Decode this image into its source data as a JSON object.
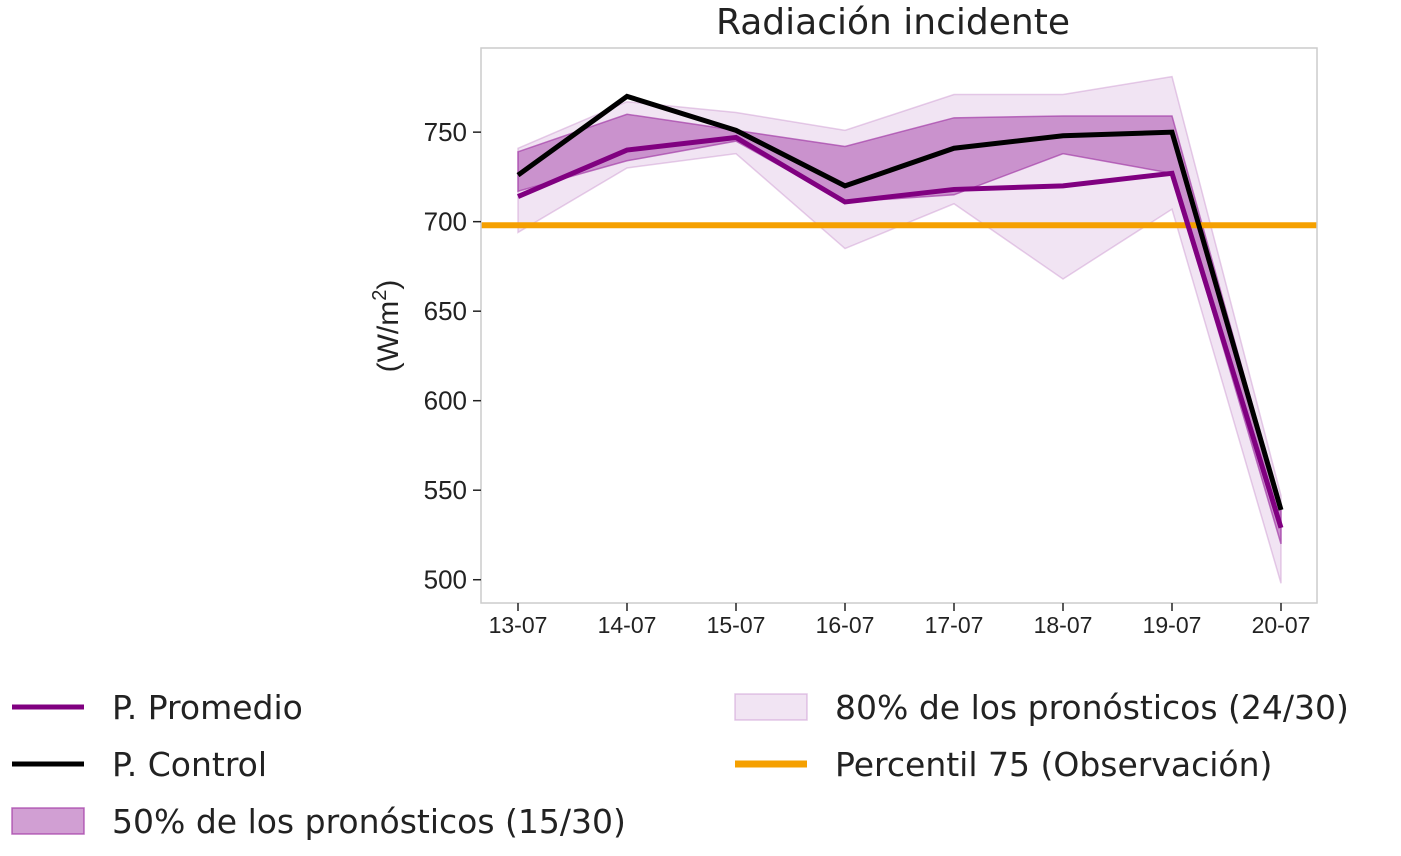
{
  "chart_data": {
    "type": "line",
    "title": "Radiación incidente",
    "xlabel": "",
    "ylabel": "(W/m",
    "ylabel_sup": "2",
    "ylabel_close": ")",
    "categories": [
      "13-07",
      "14-07",
      "15-07",
      "16-07",
      "17-07",
      "18-07",
      "19-07",
      "20-07"
    ],
    "ylim": [
      487,
      797
    ],
    "yticks": [
      500,
      550,
      600,
      650,
      700,
      750
    ],
    "grid": false,
    "series": [
      {
        "name": "P. Promedio",
        "kind": "line",
        "color": "#800080",
        "values": [
          714,
          740,
          747,
          711,
          718,
          720,
          727,
          529
        ]
      },
      {
        "name": "P. Control",
        "kind": "line",
        "color": "#000000",
        "values": [
          726,
          770,
          751,
          720,
          741,
          748,
          750,
          539
        ]
      },
      {
        "name": "50% de los pronósticos (15/30)",
        "kind": "band",
        "color": "#a43fa8",
        "opacity": 0.5,
        "lower": [
          717,
          734,
          745,
          711,
          715,
          738,
          727,
          520
        ],
        "upper": [
          739,
          760,
          751,
          742,
          758,
          759,
          759,
          540
        ]
      },
      {
        "name": "80% de los pronósticos (24/30)",
        "kind": "band",
        "color": "#c992cf",
        "opacity": 0.25,
        "lower": [
          694,
          730,
          738,
          685,
          710,
          668,
          707,
          498
        ],
        "upper": [
          741,
          767,
          761,
          751,
          771,
          771,
          781,
          547
        ]
      },
      {
        "name": "Percentil 75 (Observación)",
        "kind": "hline",
        "color": "#f5a000",
        "value": 698
      }
    ],
    "legend": {
      "position": "bottom",
      "order": [
        "P. Promedio",
        "P. Control",
        "50% de los pronósticos (15/30)",
        "80% de los pronósticos (24/30)",
        "Percentil 75 (Observación)"
      ]
    }
  }
}
